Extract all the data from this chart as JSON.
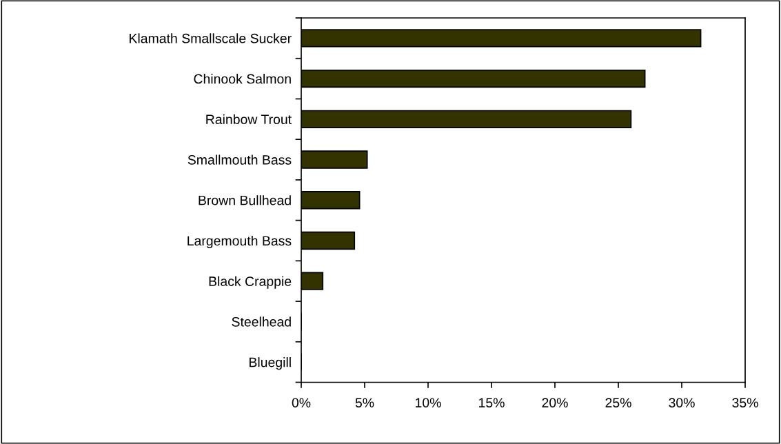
{
  "chart_data": {
    "type": "bar",
    "orientation": "horizontal",
    "categories": [
      "Klamath Smallscale Sucker",
      "Chinook Salmon",
      "Rainbow Trout",
      "Smallmouth Bass",
      "Brown Bullhead",
      "Largemouth Bass",
      "Black Crappie",
      "Steelhead",
      "Bluegill"
    ],
    "values": [
      31.5,
      27.1,
      26.0,
      5.2,
      4.6,
      4.2,
      1.7,
      0,
      0
    ],
    "color": "#333300",
    "xlim": [
      0,
      35
    ],
    "xticks": [
      {
        "value": 0,
        "label": "0%"
      },
      {
        "value": 5,
        "label": "5%"
      },
      {
        "value": 10,
        "label": "10%"
      },
      {
        "value": 15,
        "label": "15%"
      },
      {
        "value": 20,
        "label": "20%"
      },
      {
        "value": 25,
        "label": "25%"
      },
      {
        "value": 30,
        "label": "30%"
      },
      {
        "value": 35,
        "label": "35%"
      }
    ],
    "grid": false,
    "legend": false
  }
}
